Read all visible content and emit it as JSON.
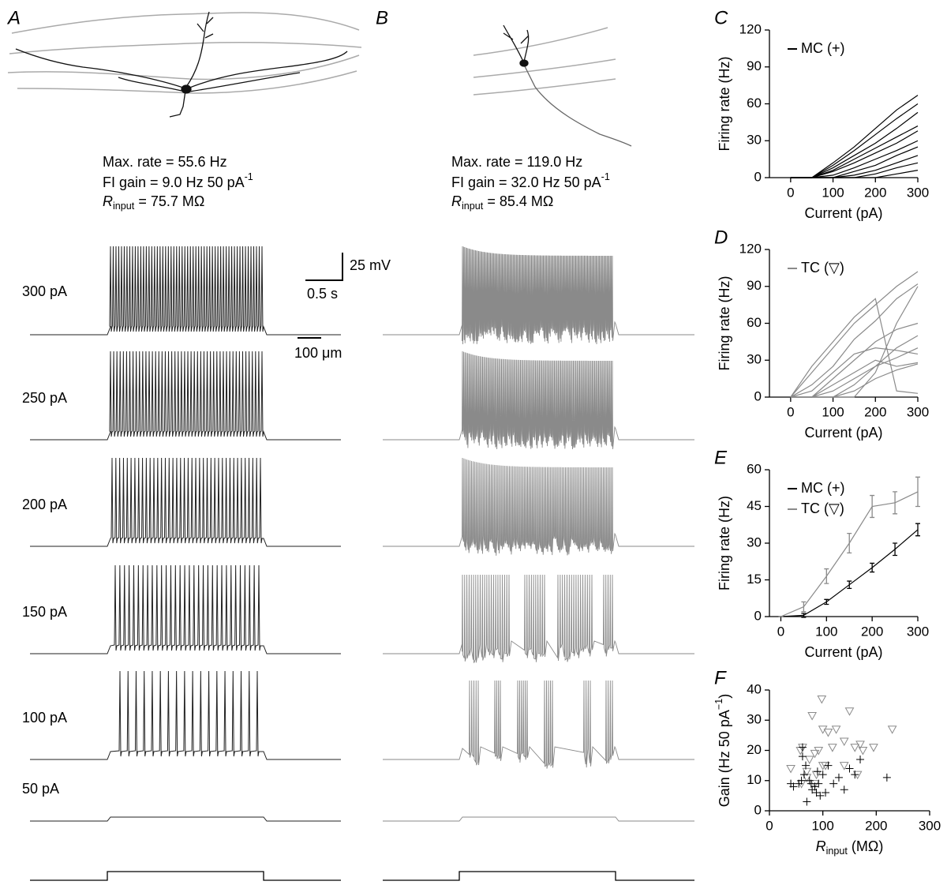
{
  "panel_a": {
    "label": "A",
    "scale_bar": "100 μm",
    "max_rate": "Max. rate = 55.6 Hz",
    "fi_gain": [
      {
        "text": "FI gain = 9.0 Hz 50 pA"
      },
      {
        "text": "-1",
        "sup": true
      }
    ],
    "r_input": [
      {
        "text": "R",
        "italic": true
      },
      {
        "text": "input",
        "sub": true
      },
      {
        "text": "= 75.7 MΩ"
      }
    ],
    "currents": [
      "300 pA",
      "250 pA",
      "200 pA",
      "150 pA",
      "100 pA",
      "50 pA"
    ],
    "voltage_scale": "25 mV",
    "time_scale": "0.5 s"
  },
  "panel_b": {
    "label": "B",
    "max_rate": "Max. rate = 119.0 Hz",
    "fi_gain": [
      {
        "text": "FI gain = 32.0 Hz 50 pA"
      },
      {
        "text": "-1",
        "sup": true
      }
    ],
    "r_input": [
      {
        "text": "R",
        "italic": true
      },
      {
        "text": "input",
        "sub": true
      },
      {
        "text": "= 85.4 MΩ"
      }
    ]
  },
  "chart_data": [
    {
      "type": "line",
      "label": "C",
      "x": [
        0,
        50,
        100,
        150,
        200,
        250,
        300
      ],
      "xlim": [
        -50,
        300
      ],
      "xticks": [
        0,
        100,
        200,
        300
      ],
      "ylim": [
        0,
        120
      ],
      "yticks": [
        0,
        30,
        60,
        90,
        120
      ],
      "xlabel": "Current (pA)",
      "ylabel": "Firing rate (Hz)",
      "legend": [
        {
          "name": "MC (+)",
          "color": "#000000"
        }
      ],
      "series": [
        {
          "color": "#000000",
          "values": [
            0,
            0,
            12,
            25,
            40,
            55,
            67
          ]
        },
        {
          "color": "#000000",
          "values": [
            0,
            0,
            10,
            22,
            35,
            48,
            60
          ]
        },
        {
          "color": "#000000",
          "values": [
            0,
            0,
            8,
            18,
            28,
            40,
            53
          ]
        },
        {
          "color": "#000000",
          "values": [
            0,
            0,
            6,
            15,
            24,
            33,
            42
          ]
        },
        {
          "color": "#000000",
          "values": [
            0,
            0,
            5,
            12,
            20,
            28,
            38
          ]
        },
        {
          "color": "#000000",
          "values": [
            0,
            0,
            2,
            8,
            15,
            22,
            30
          ]
        },
        {
          "color": "#000000",
          "values": [
            0,
            0,
            0,
            5,
            10,
            18,
            25
          ]
        },
        {
          "color": "#000000",
          "values": [
            0,
            0,
            0,
            2,
            6,
            12,
            18
          ]
        },
        {
          "color": "#000000",
          "values": [
            0,
            0,
            0,
            0,
            3,
            8,
            12
          ]
        },
        {
          "color": "#000000",
          "values": [
            0,
            0,
            0,
            0,
            0,
            3,
            6
          ]
        }
      ]
    },
    {
      "type": "line",
      "label": "D",
      "x": [
        0,
        50,
        100,
        150,
        200,
        250,
        300
      ],
      "xlim": [
        -50,
        300
      ],
      "xticks": [
        0,
        100,
        200,
        300
      ],
      "ylim": [
        0,
        120
      ],
      "yticks": [
        0,
        30,
        60,
        90,
        120
      ],
      "xlabel": "Current (pA)",
      "ylabel": "Firing rate (Hz)",
      "legend": [
        {
          "name": "TC (▽)",
          "color": "#8a8a8a"
        }
      ],
      "series": [
        {
          "color": "#8a8a8a",
          "values": [
            0,
            10,
            25,
            47,
            62,
            80,
            92
          ]
        },
        {
          "color": "#8a8a8a",
          "values": [
            0,
            20,
            40,
            60,
            75,
            90,
            102
          ]
        },
        {
          "color": "#8a8a8a",
          "values": [
            0,
            0,
            15,
            30,
            45,
            55,
            60
          ]
        },
        {
          "color": "#8a8a8a",
          "values": [
            0,
            0,
            0,
            10,
            25,
            40,
            50
          ]
        },
        {
          "color": "#8a8a8a",
          "values": [
            0,
            5,
            20,
            35,
            40,
            38,
            35
          ]
        },
        {
          "color": "#8a8a8a",
          "values": [
            0,
            0,
            0,
            0,
            20,
            60,
            90
          ]
        },
        {
          "color": "#8a8a8a",
          "values": [
            0,
            0,
            5,
            15,
            25,
            32,
            40
          ]
        },
        {
          "color": "#8a8a8a",
          "values": [
            0,
            25,
            45,
            65,
            80,
            5,
            3
          ]
        },
        {
          "color": "#8a8a8a",
          "values": [
            0,
            0,
            10,
            20,
            30,
            25,
            28
          ]
        },
        {
          "color": "#8a8a8a",
          "values": [
            0,
            0,
            0,
            5,
            15,
            22,
            27
          ]
        }
      ]
    },
    {
      "type": "line",
      "label": "E",
      "x": [
        0,
        50,
        100,
        150,
        200,
        250,
        300
      ],
      "xlim": [
        -25,
        300
      ],
      "xticks": [
        0,
        100,
        200,
        300
      ],
      "ylim": [
        0,
        60
      ],
      "yticks": [
        0,
        15,
        30,
        45,
        60
      ],
      "xlabel": "Current (pA)",
      "ylabel": "Firing rate (Hz)",
      "series": [
        {
          "name": "MC (+)",
          "color": "#000000",
          "values": [
            0,
            0.5,
            6,
            13,
            20,
            27.5,
            35.5
          ],
          "errors": [
            0,
            0.8,
            1,
            1.5,
            1.8,
            2.5,
            2.5
          ]
        },
        {
          "name": "TC (▽)",
          "color": "#8a8a8a",
          "values": [
            0,
            4,
            16.5,
            30,
            45,
            46.5,
            51
          ],
          "errors": [
            0,
            2,
            3,
            4,
            4.5,
            4.5,
            6
          ]
        }
      ]
    },
    {
      "type": "scatter",
      "label": "F",
      "xlim": [
        0,
        300
      ],
      "xticks": [
        0,
        100,
        200,
        300
      ],
      "ylim": [
        0,
        40
      ],
      "yticks": [
        0,
        10,
        20,
        30,
        40
      ],
      "xlabel": [
        {
          "text": "R",
          "italic": true
        },
        {
          "text": "input",
          "sub": true
        },
        {
          "text": "(MΩ)"
        }
      ],
      "ylabel": [
        {
          "text": "Gain (Hz 50 pA"
        },
        {
          "text": "−1",
          "sup": true
        },
        {
          "text": ")"
        }
      ],
      "series": [
        {
          "marker": "triangle",
          "color": "#8a8a8a",
          "x": [
            40,
            58,
            62,
            70,
            75,
            80,
            85,
            88,
            92,
            98,
            100,
            105,
            110,
            118,
            125,
            140,
            150,
            160,
            165,
            170,
            195,
            230,
            60,
            70,
            85,
            100,
            140,
            175
          ],
          "y": [
            14,
            20,
            21,
            13,
            17,
            31.5,
            19,
            12,
            20,
            37,
            27,
            15,
            26,
            21,
            27,
            23,
            33,
            21,
            12,
            22,
            21,
            27,
            9,
            11,
            9,
            15,
            15,
            20
          ]
        },
        {
          "marker": "plus",
          "color": "#000000",
          "x": [
            40,
            45,
            55,
            60,
            62,
            65,
            68,
            70,
            75,
            78,
            80,
            85,
            88,
            90,
            92,
            95,
            100,
            105,
            110,
            120,
            130,
            140,
            150,
            160,
            170,
            220,
            62
          ],
          "y": [
            9,
            8,
            9,
            10,
            21,
            12,
            15,
            3,
            10,
            9,
            7,
            8,
            6,
            13,
            9,
            5,
            12,
            6,
            15,
            9,
            11,
            7,
            14,
            12,
            17,
            11,
            18
          ]
        }
      ]
    }
  ]
}
